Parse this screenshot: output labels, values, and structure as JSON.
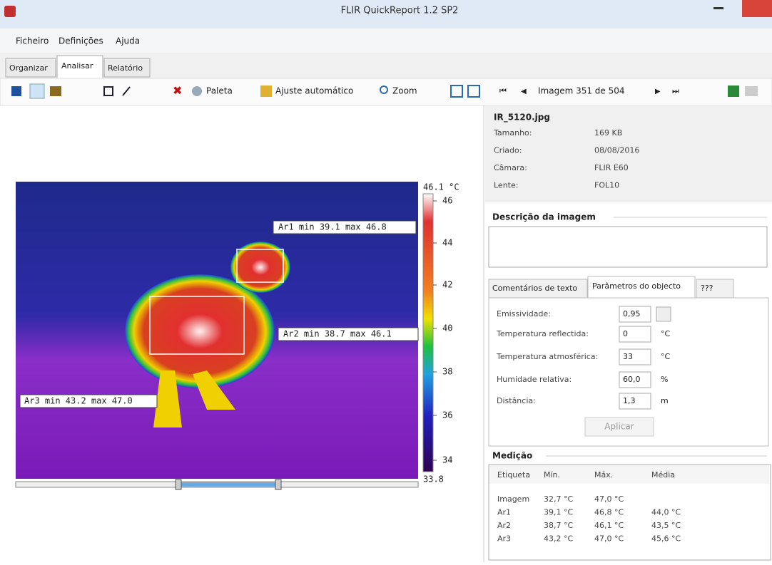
{
  "window": {
    "title": "FLIR QuickReport 1.2 SP2"
  },
  "menu": [
    "Ficheiro",
    "Definições",
    "Ajuda"
  ],
  "tabs": [
    "Organizar",
    "Analisar",
    "Relatório"
  ],
  "toolbar": [
    "Paleta",
    "Ajuste automático",
    "Zoom",
    "Imagem 351 de 504"
  ],
  "image": {
    "scale_max": "46.1 °C",
    "scale_min": "33.8",
    "scale_ticks": [
      "46",
      "44",
      "42",
      "40",
      "38",
      "36",
      "34"
    ],
    "labels": [
      "Ar1 min 39.1 max 46.8",
      "Ar2 min 38.7 max 46.1",
      "Ar3 min 43.2 max 47.0"
    ]
  },
  "file": {
    "name": "IR_5120.jpg",
    "rows": [
      [
        "Tamanho:",
        "169 KB"
      ],
      [
        "Criado:",
        "08/08/2016"
      ],
      [
        "Câmara:",
        "FLIR E60"
      ],
      [
        "Lente:",
        "FOL10"
      ]
    ]
  },
  "description": {
    "title": "Descrição da imagem"
  },
  "param_tabs": [
    "Comentários de texto",
    "Parâmetros do objecto",
    "???"
  ],
  "params": {
    "rows": [
      [
        "Emissividade:",
        "0,95"
      ],
      [
        "Temperatura reflectida:",
        "0",
        "°C"
      ],
      [
        "Temperatura atmosférica:",
        "33",
        "°C"
      ],
      [
        "Humidade relativa:",
        "60,0",
        "%"
      ],
      [
        "Distância:",
        "1,3",
        "m"
      ]
    ],
    "button": "Aplicar"
  },
  "measurement": {
    "title": "Medição",
    "headers": [
      "Etiqueta",
      "Mín.",
      "Máx.",
      "Média"
    ],
    "rows": [
      [
        "Imagem",
        "32,7 °C",
        "47,0 °C"
      ],
      [
        "Ar1",
        "39,1 °C",
        "46,8 °C",
        "44,0 °C"
      ],
      [
        "Ar2",
        "38,7 °C",
        "46,1 °C",
        "43,5 °C"
      ],
      [
        "Ar3",
        "43,2 °C",
        "47,0 °C",
        "45,6 °C"
      ]
    ]
  }
}
